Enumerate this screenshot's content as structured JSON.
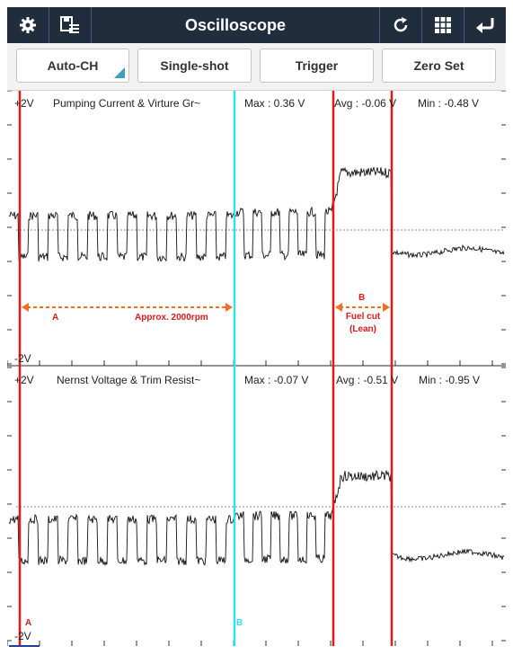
{
  "toolbar": {
    "title": "Oscilloscope",
    "left_icons": [
      "gear-icon",
      "save-list-icon"
    ],
    "right_icons": [
      "refresh-icon",
      "grid-icon",
      "back-icon"
    ]
  },
  "buttons": {
    "auto_ch": "Auto-CH",
    "single_shot": "Single-shot",
    "trigger": "Trigger",
    "zero_set": "Zero Set"
  },
  "channels": [
    {
      "scale_top": "+2V",
      "scale_bottom": "-2V",
      "name": "Pumping Current & Virture Gr~",
      "max": "Max : 0.36 V",
      "avg": "Avg : -0.06 V",
      "min": "Min : -0.48 V"
    },
    {
      "scale_top": "+2V",
      "scale_bottom": "-2V",
      "name": "Nernst Voltage & Trim Resist~",
      "max": "Max : -0.07 V",
      "avg": "Avg : -0.51 V",
      "min": "Min : -0.95 V"
    }
  ],
  "annotations": {
    "region_a": "A",
    "approx": "Approx. 2000rpm",
    "region_b": "B",
    "fuel_cut_line1": "Fuel cut",
    "fuel_cut_line2": "(Lean)",
    "cursor_a": "A",
    "cursor_b": "B"
  },
  "colors": {
    "toolbar_bg": "#1f2d3d",
    "cursor_red": "#e11919",
    "cursor_cyan": "#33e0f0",
    "arrow_orange": "#f07020",
    "trace": "#111111"
  }
}
